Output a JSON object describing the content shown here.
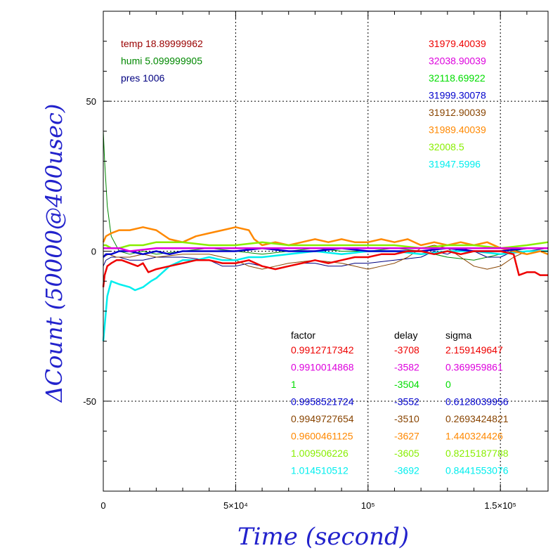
{
  "chart_data": {
    "type": "line",
    "title": "",
    "xlabel": "Time (second)",
    "ylabel": "ΔCount (50000@400usec)",
    "xlim": [
      0,
      168000
    ],
    "ylim": [
      -80,
      80
    ],
    "grid": true,
    "x_tick_labels": [
      {
        "value": 0,
        "label": "0"
      },
      {
        "value": 50000,
        "label": "5×10⁴"
      },
      {
        "value": 100000,
        "label": "10⁵"
      },
      {
        "value": 150000,
        "label": "1.5×10⁵"
      }
    ],
    "y_tick_labels": [
      {
        "value": 50,
        "label": "50"
      },
      {
        "value": 0,
        "label": "0"
      },
      {
        "value": -50,
        "label": "-50"
      }
    ],
    "env_legend": [
      {
        "text": "temp 18.89999962",
        "color": "#990000"
      },
      {
        "text": "humi 5.099999905",
        "color": "#008800"
      },
      {
        "text": "pres 1006",
        "color": "#000080"
      }
    ],
    "mean_legend": [
      {
        "text": "31979.40039",
        "color": "#ee0000"
      },
      {
        "text": "32038.90039",
        "color": "#dd00dd"
      },
      {
        "text": "32118.69922",
        "color": "#00dd00"
      },
      {
        "text": "31999.30078",
        "color": "#0000cc"
      },
      {
        "text": "31912.90039",
        "color": "#884400"
      },
      {
        "text": "31989.40039",
        "color": "#ff8800"
      },
      {
        "text": "32008.5",
        "color": "#88ee00"
      },
      {
        "text": "31947.5996",
        "color": "#00eeee"
      }
    ],
    "stats_table": {
      "headers": [
        "factor",
        "delay",
        "sigma"
      ],
      "rows": [
        {
          "factor": "0.9912717342",
          "delay": "-3708",
          "sigma": "2.159149647",
          "color": "#ee0000"
        },
        {
          "factor": "0.9910014868",
          "delay": "-3582",
          "sigma": "0.369959861",
          "color": "#dd00dd"
        },
        {
          "factor": "1",
          "delay": "-3504",
          "sigma": "0",
          "color": "#00dd00"
        },
        {
          "factor": "0.9958521724",
          "delay": "-3552",
          "sigma": "0.6128039956",
          "color": "#0000cc"
        },
        {
          "factor": "0.9949727654",
          "delay": "-3510",
          "sigma": "0.2693424821",
          "color": "#884400"
        },
        {
          "factor": "0.9600461125",
          "delay": "-3627",
          "sigma": "1.440324426",
          "color": "#ff8800"
        },
        {
          "factor": "1.009506226",
          "delay": "-3605",
          "sigma": "0.8215187788",
          "color": "#88ee00"
        },
        {
          "factor": "1.014510512",
          "delay": "-3692",
          "sigma": "0.8441553076",
          "color": "#00eeee"
        }
      ]
    },
    "series": [
      {
        "color": "#008800",
        "x": [
          0,
          500,
          1500,
          3000,
          6000,
          10000,
          15000,
          20000,
          30000,
          40000,
          50000,
          60000,
          70000,
          80000,
          90000,
          100000,
          110000,
          120000,
          130000,
          140000,
          150000,
          160000,
          168000
        ],
        "values": [
          40,
          30,
          15,
          5,
          0,
          -1,
          0,
          -1,
          0,
          1,
          0,
          -1,
          0,
          1,
          0,
          0,
          1,
          0,
          -2,
          -3,
          -1,
          1,
          1
        ]
      },
      {
        "color": "#000080",
        "x": [
          0,
          1000,
          3000,
          6000,
          10000,
          15000,
          20000,
          30000,
          40000,
          45000,
          50000,
          55000,
          60000,
          65000,
          70000,
          75000,
          80000,
          85000,
          90000,
          95000,
          100000,
          110000,
          120000,
          125000,
          130000,
          135000,
          140000,
          145000,
          150000,
          155000,
          160000,
          168000
        ],
        "values": [
          -5,
          -3,
          -2,
          -2,
          -3,
          -3,
          -2,
          -2,
          -3,
          -5,
          -5,
          -4,
          -5,
          -6,
          -5,
          -4,
          -4,
          -5,
          -5,
          -4,
          -4,
          -3,
          -2,
          0,
          -1,
          1,
          0,
          -2,
          -2,
          0,
          0,
          1
        ]
      },
      {
        "color": "#884400",
        "x": [
          0,
          2000,
          5000,
          10000,
          15000,
          20000,
          30000,
          40000,
          45000,
          50000,
          55000,
          60000,
          65000,
          70000,
          80000,
          90000,
          95000,
          100000,
          105000,
          110000,
          115000,
          120000,
          125000,
          130000,
          135000,
          140000,
          145000,
          150000,
          155000,
          160000,
          168000
        ],
        "values": [
          -2,
          -1,
          -2,
          -2,
          -1,
          -2,
          -1,
          -1,
          -2,
          -3,
          -5,
          -6,
          -5,
          -4,
          -3,
          -4,
          -5,
          -6,
          -5,
          -4,
          -2,
          1,
          2,
          1,
          -2,
          -5,
          -6,
          -5,
          -2,
          0,
          0
        ]
      },
      {
        "color": "#00eeee",
        "x": [
          0,
          500,
          1500,
          3000,
          6000,
          10000,
          12000,
          15000,
          18000,
          20000,
          25000,
          30000,
          35000,
          40000,
          45000,
          50000,
          55000,
          60000,
          70000,
          80000,
          90000,
          100000,
          110000,
          120000,
          130000,
          140000,
          150000,
          160000,
          168000
        ],
        "values": [
          -30,
          -25,
          -15,
          -10,
          -11,
          -12,
          -13,
          -12,
          -10,
          -9,
          -5,
          -3,
          -3,
          -2,
          -3,
          -3,
          -2,
          -2,
          -1,
          0,
          -1,
          0,
          0,
          -1,
          0,
          0,
          -1,
          0,
          0
        ]
      },
      {
        "color": "#ff8800",
        "x": [
          0,
          1000,
          3000,
          6000,
          10000,
          15000,
          20000,
          25000,
          30000,
          35000,
          40000,
          45000,
          50000,
          55000,
          57000,
          60000,
          65000,
          70000,
          75000,
          80000,
          85000,
          90000,
          95000,
          100000,
          105000,
          110000,
          115000,
          120000,
          125000,
          130000,
          135000,
          140000,
          145000,
          150000,
          155000,
          160000,
          165000,
          168000
        ],
        "values": [
          3,
          5,
          6,
          7,
          7,
          8,
          7,
          4,
          3,
          5,
          6,
          7,
          8,
          7,
          4,
          2,
          3,
          2,
          3,
          4,
          3,
          4,
          3,
          3,
          4,
          3,
          4,
          2,
          3,
          2,
          3,
          2,
          3,
          1,
          0,
          -1,
          0,
          -1
        ]
      },
      {
        "color": "#88ee00",
        "x": [
          0,
          1000,
          3000,
          6000,
          10000,
          15000,
          20000,
          30000,
          40000,
          50000,
          60000,
          70000,
          80000,
          90000,
          100000,
          110000,
          120000,
          130000,
          140000,
          150000,
          160000,
          168000
        ],
        "values": [
          2,
          2,
          1,
          1,
          2,
          2,
          3,
          3,
          2,
          2,
          3,
          2,
          2,
          2,
          2,
          2,
          1,
          2,
          2,
          1,
          2,
          3
        ]
      },
      {
        "color": "#0000cc",
        "x": [
          0,
          1000,
          3000,
          6000,
          10000,
          15000,
          20000,
          25000,
          30000,
          40000,
          50000,
          60000,
          70000,
          80000,
          90000,
          100000,
          110000,
          120000,
          130000,
          140000,
          150000,
          160000,
          168000
        ],
        "values": [
          -2,
          -1,
          -1,
          0,
          0,
          -1,
          0,
          -1,
          0,
          0,
          0,
          1,
          0,
          0,
          1,
          0,
          0,
          0,
          1,
          0,
          0,
          1,
          1
        ]
      },
      {
        "color": "#dd00dd",
        "x": [
          0,
          1000,
          3000,
          6000,
          10000,
          20000,
          30000,
          40000,
          50000,
          60000,
          70000,
          80000,
          90000,
          100000,
          110000,
          120000,
          130000,
          140000,
          150000,
          160000,
          168000
        ],
        "values": [
          1,
          1,
          1,
          1,
          0,
          1,
          1,
          1,
          1,
          1,
          1,
          1,
          1,
          1,
          1,
          1,
          1,
          1,
          1,
          1,
          1
        ]
      },
      {
        "color": "#ee0000",
        "x": [
          0,
          500,
          1500,
          3000,
          5000,
          7000,
          10000,
          13000,
          15000,
          17000,
          20000,
          25000,
          30000,
          35000,
          40000,
          45000,
          50000,
          55000,
          60000,
          65000,
          70000,
          75000,
          80000,
          85000,
          90000,
          95000,
          100000,
          105000,
          110000,
          115000,
          120000,
          125000,
          130000,
          135000,
          140000,
          145000,
          150000,
          155000,
          157000,
          160000,
          163000,
          165000,
          168000
        ],
        "values": [
          -12,
          -8,
          -5,
          -4,
          -3,
          -3,
          -4,
          -5,
          -4,
          -7,
          -6,
          -5,
          -4,
          -3,
          -3,
          -4,
          -4,
          -3,
          -5,
          -6,
          -5,
          -4,
          -3,
          -4,
          -3,
          -2,
          -2,
          -1,
          -1,
          0,
          0,
          -1,
          0,
          -1,
          0,
          0,
          0,
          -1,
          -8,
          -7,
          -7,
          -8,
          -8
        ]
      }
    ]
  }
}
